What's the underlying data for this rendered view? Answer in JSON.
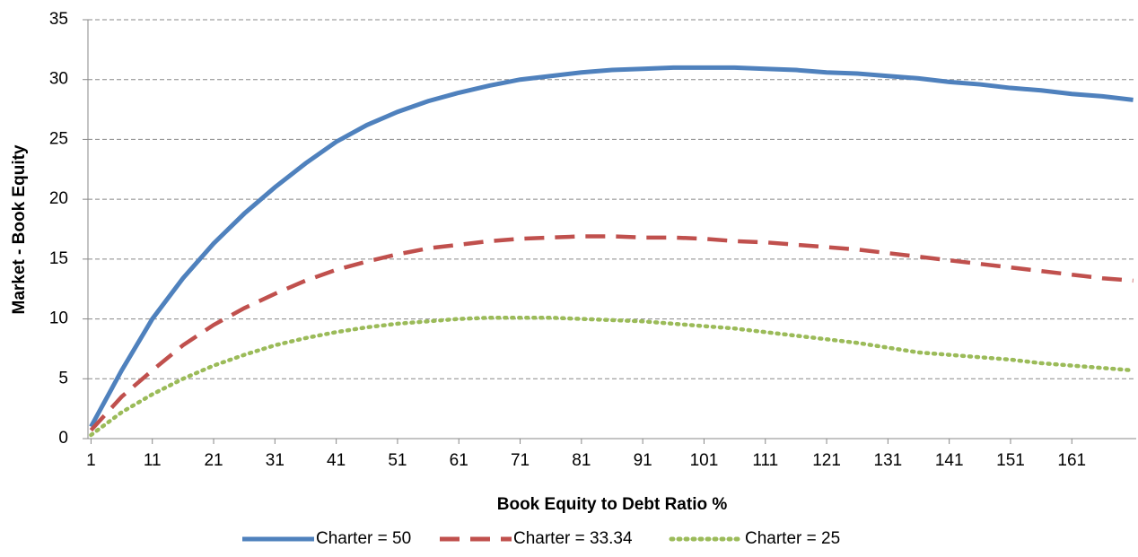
{
  "chart_data": {
    "type": "line",
    "x_label": "Book Equity to Debt Ratio %",
    "y_label": "Market - Book Equity",
    "x": [
      1,
      6,
      11,
      16,
      21,
      26,
      31,
      36,
      41,
      46,
      51,
      56,
      61,
      66,
      71,
      76,
      81,
      86,
      91,
      96,
      101,
      106,
      111,
      116,
      121,
      126,
      131,
      136,
      141,
      146,
      151,
      156,
      161,
      166,
      171
    ],
    "series": [
      {
        "name": "Charter = 50",
        "color": "#4f81bd",
        "style": "solid",
        "values": [
          1,
          5.7,
          10,
          13.4,
          16.3,
          18.8,
          21,
          23,
          24.8,
          26.2,
          27.3,
          28.2,
          28.9,
          29.5,
          30,
          30.3,
          30.6,
          30.8,
          30.9,
          31,
          31,
          31,
          30.9,
          30.8,
          30.6,
          30.5,
          30.3,
          30.1,
          29.8,
          29.6,
          29.3,
          29.1,
          28.8,
          28.6,
          28.3
        ]
      },
      {
        "name": "Charter = 33.34",
        "color": "#c0504d",
        "style": "dashed",
        "values": [
          0.7,
          3.5,
          5.7,
          7.8,
          9.5,
          10.9,
          12.1,
          13.2,
          14.1,
          14.8,
          15.4,
          15.9,
          16.2,
          16.5,
          16.7,
          16.8,
          16.9,
          16.9,
          16.8,
          16.8,
          16.7,
          16.5,
          16.4,
          16.2,
          16,
          15.8,
          15.5,
          15.2,
          14.9,
          14.6,
          14.3,
          14,
          13.7,
          13.4,
          13.2
        ]
      },
      {
        "name": "Charter = 25",
        "color": "#9bbb59",
        "style": "dotted",
        "values": [
          0.3,
          2.2,
          3.7,
          5,
          6.1,
          7,
          7.8,
          8.4,
          8.9,
          9.3,
          9.6,
          9.8,
          10,
          10.1,
          10.1,
          10.1,
          10,
          9.9,
          9.8,
          9.6,
          9.4,
          9.2,
          8.9,
          8.6,
          8.3,
          8,
          7.6,
          7.2,
          7,
          6.8,
          6.6,
          6.3,
          6.1,
          5.9,
          5.7
        ]
      }
    ],
    "xlim": [
      0.5,
      171.5
    ],
    "xticks": [
      1,
      11,
      21,
      31,
      41,
      51,
      61,
      71,
      81,
      91,
      101,
      111,
      121,
      131,
      141,
      151,
      161
    ],
    "ylim": [
      0,
      35
    ],
    "yticks": [
      0,
      5,
      10,
      15,
      20,
      25,
      30,
      35
    ],
    "grid": true,
    "legend": "bottom"
  }
}
